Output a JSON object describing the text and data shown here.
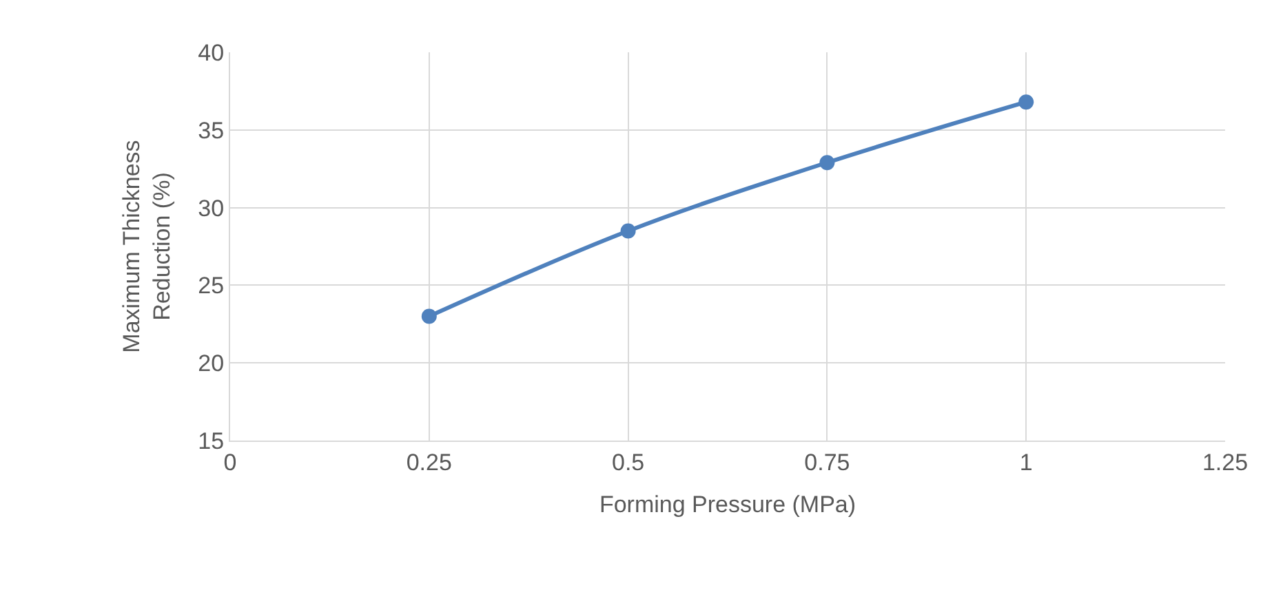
{
  "chart_data": {
    "type": "line",
    "xlabel": "Forming Pressure (MPa)",
    "ylabel": "Maximum Thickness Reduction (%)",
    "x": [
      0.25,
      0.5,
      0.75,
      1
    ],
    "series": [
      {
        "color": "#4f81bd",
        "values": [
          23.0,
          28.5,
          32.9,
          36.8
        ]
      }
    ],
    "xlim": [
      0,
      1.25
    ],
    "xticks": [
      0,
      0.25,
      0.5,
      0.75,
      1,
      1.25
    ],
    "ylim": [
      15,
      40
    ],
    "yticks": [
      15,
      20,
      25,
      30,
      35,
      40
    ],
    "grid": true,
    "marker": "circle",
    "line_style": "solid"
  }
}
